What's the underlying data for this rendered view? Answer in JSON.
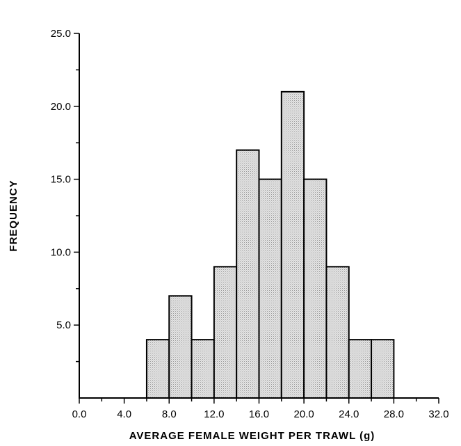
{
  "chart_data": {
    "type": "bar",
    "title": "",
    "xlabel": "AVERAGE FEMALE WEIGHT PER TRAWL (g)",
    "ylabel": "FREQUENCY",
    "xlim": [
      0,
      32
    ],
    "ylim": [
      0,
      25
    ],
    "x_ticks": [
      "0.0",
      "4.0",
      "8.0",
      "12.0",
      "16.0",
      "20.0",
      "24.0",
      "28.0",
      "32.0"
    ],
    "y_ticks": [
      "5.0",
      "10.0",
      "15.0",
      "20.0",
      "25.0"
    ],
    "bin_width": 2,
    "bins": [
      {
        "start": 6,
        "end": 8,
        "value": 4
      },
      {
        "start": 8,
        "end": 10,
        "value": 7
      },
      {
        "start": 10,
        "end": 12,
        "value": 4
      },
      {
        "start": 12,
        "end": 14,
        "value": 9
      },
      {
        "start": 14,
        "end": 16,
        "value": 17
      },
      {
        "start": 16,
        "end": 18,
        "value": 15
      },
      {
        "start": 18,
        "end": 20,
        "value": 21
      },
      {
        "start": 20,
        "end": 22,
        "value": 15
      },
      {
        "start": 22,
        "end": 24,
        "value": 9
      },
      {
        "start": 24,
        "end": 26,
        "value": 4
      },
      {
        "start": 26,
        "end": 28,
        "value": 4
      }
    ],
    "bar_fill": "#d9d9d9",
    "grid": false,
    "legend": "none"
  }
}
